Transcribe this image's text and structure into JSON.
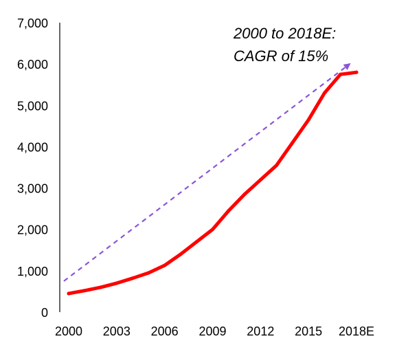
{
  "chart_data": {
    "type": "line",
    "x": [
      "2000",
      "2001",
      "2002",
      "2003",
      "2004",
      "2005",
      "2006",
      "2007",
      "2008",
      "2009",
      "2010",
      "2011",
      "2012",
      "2013",
      "2014",
      "2015",
      "2016",
      "2017",
      "2018E"
    ],
    "series": [
      {
        "values": [
          450,
          520,
          600,
          700,
          820,
          950,
          1130,
          1400,
          1700,
          2000,
          2450,
          2850,
          3200,
          3550,
          4100,
          4650,
          5300,
          5750,
          5800
        ],
        "color": "#ff0000"
      }
    ],
    "x_tick_labels": [
      "2000",
      "2003",
      "2006",
      "2009",
      "2012",
      "2015",
      "2018E"
    ],
    "y_tick_labels": [
      "0",
      "1,000",
      "2,000",
      "3,000",
      "4,000",
      "5,000",
      "6,000",
      "7,000"
    ],
    "ylim": [
      0,
      7000
    ],
    "grid": false,
    "trend_arrow": {
      "from": {
        "x": "2000",
        "y": 750
      },
      "to": {
        "x": "2018E",
        "y": 6000
      },
      "color": "#8a55d7",
      "style": "dashed"
    },
    "annotation": {
      "line1": "2000 to 2018E:",
      "line2": "CAGR of 15%"
    }
  }
}
